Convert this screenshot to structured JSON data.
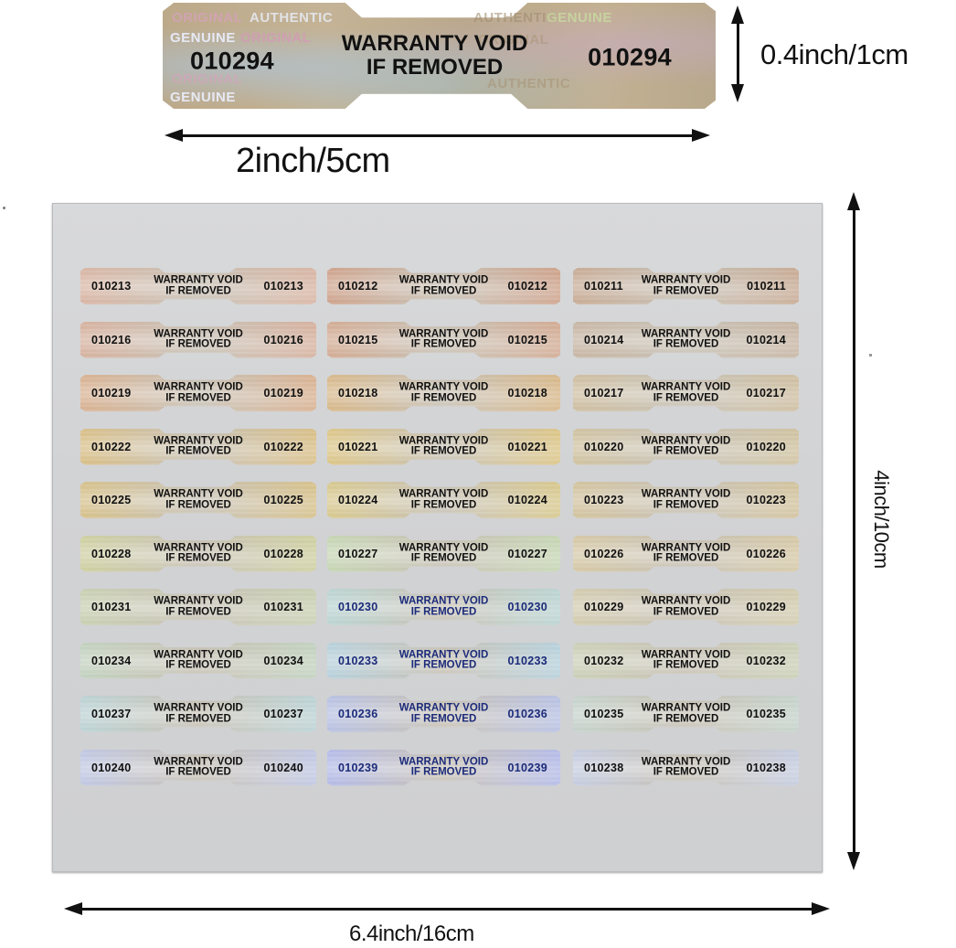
{
  "sample_label": {
    "serial_left": "010294",
    "serial_right": "010294",
    "text_line1": "WARRANTY VOID",
    "text_line2": "IF REMOVED",
    "pattern_words": [
      "ORIGINAL",
      "AUTHENTIC",
      "GENUINE"
    ]
  },
  "dimensions": {
    "label_height": "0.4inch/1cm",
    "label_width": "2inch/5cm",
    "sheet_height": "4inch/10cm",
    "sheet_width": "6.4inch/16cm"
  },
  "sheet": {
    "label_text_line1": "WARRANTY VOID",
    "label_text_line2": "IF REMOVED",
    "columns": 3,
    "rows": [
      [
        "010213",
        "010212",
        "010211"
      ],
      [
        "010216",
        "010215",
        "010214"
      ],
      [
        "010219",
        "010218",
        "010217"
      ],
      [
        "010222",
        "010221",
        "010220"
      ],
      [
        "010225",
        "010224",
        "010223"
      ],
      [
        "010228",
        "010227",
        "010226"
      ],
      [
        "010231",
        "010230",
        "010229"
      ],
      [
        "010234",
        "010233",
        "010232"
      ],
      [
        "010237",
        "010236",
        "010235"
      ],
      [
        "010240",
        "010239",
        "010238"
      ]
    ]
  },
  "colors": {
    "sheet_backing": "#d3d4d6",
    "arrow": "#111111",
    "hologram_gold": "#c9b48a",
    "hologram_red": "#d99a7c",
    "hologram_green": "#b9d2b0",
    "hologram_blue": "#b7c2e6"
  }
}
